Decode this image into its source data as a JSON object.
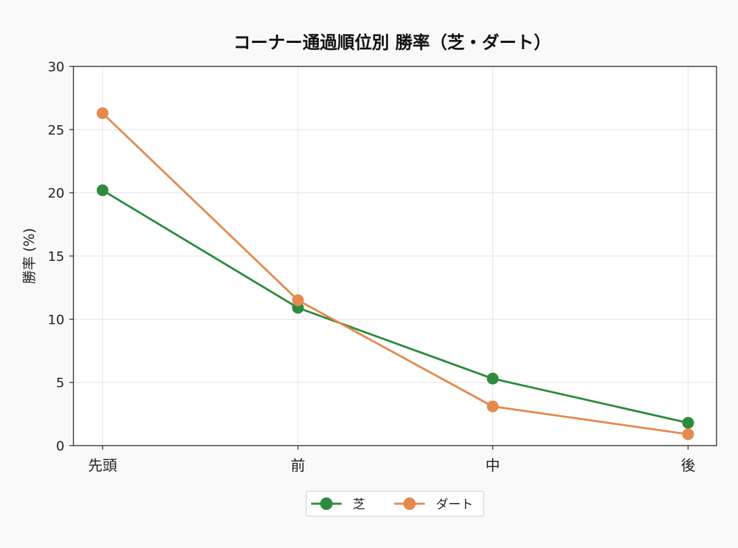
{
  "chart_data": {
    "type": "line",
    "title": "コーナー通過順位別 勝率（芝・ダート）",
    "xlabel": "",
    "ylabel": "勝率 (%)",
    "categories": [
      "先頭",
      "前",
      "中",
      "後"
    ],
    "ylim": [
      0,
      30
    ],
    "yticks": [
      0,
      5,
      10,
      15,
      20,
      25,
      30
    ],
    "grid": true,
    "legend_position": "bottom-center",
    "series": [
      {
        "name": "芝",
        "color": "#2e8b3e",
        "values": [
          20.2,
          10.9,
          5.3,
          1.8
        ]
      },
      {
        "name": "ダート",
        "color": "#e48a4f",
        "values": [
          26.3,
          11.5,
          3.1,
          0.9
        ]
      }
    ]
  }
}
